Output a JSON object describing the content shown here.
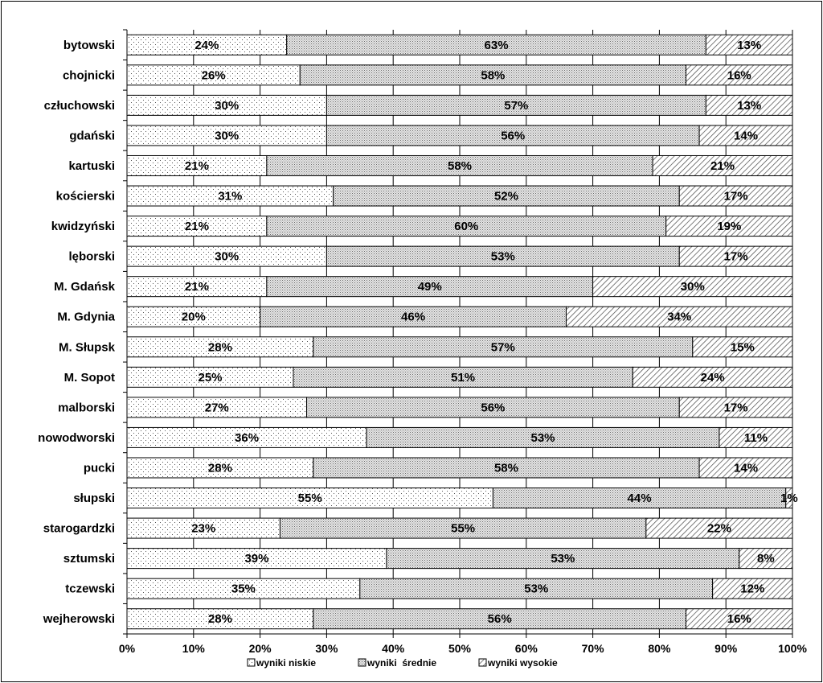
{
  "chart_data": {
    "type": "bar",
    "orientation": "horizontal",
    "stacked": true,
    "stack_mode": "percent",
    "categories": [
      "bytowski",
      "chojnicki",
      "człuchowski",
      "gdański",
      "kartuski",
      "kościerski",
      "kwidzyński",
      "lęborski",
      "M. Gdańsk",
      "M. Gdynia",
      "M. Słupsk",
      "M. Sopot",
      "malborski",
      "nowodworski",
      "pucki",
      "słupski",
      "starogardzki",
      "sztumski",
      "tczewski",
      "wejherowski"
    ],
    "series": [
      {
        "name": "wyniki niskie",
        "pattern": "sparse-dots",
        "values": [
          24,
          26,
          30,
          30,
          21,
          31,
          21,
          30,
          21,
          20,
          28,
          25,
          27,
          36,
          28,
          55,
          23,
          39,
          35,
          28
        ]
      },
      {
        "name": "wyniki  średnie",
        "pattern": "dense-dots",
        "values": [
          63,
          58,
          57,
          56,
          58,
          52,
          60,
          53,
          49,
          46,
          57,
          51,
          56,
          53,
          58,
          44,
          55,
          53,
          53,
          56
        ]
      },
      {
        "name": "wyniki wysokie",
        "pattern": "diagonal-hatch",
        "values": [
          13,
          16,
          13,
          14,
          21,
          17,
          19,
          17,
          30,
          34,
          15,
          24,
          17,
          11,
          14,
          1,
          22,
          8,
          12,
          16
        ]
      }
    ],
    "xticks": [
      "0%",
      "10%",
      "20%",
      "30%",
      "40%",
      "50%",
      "60%",
      "70%",
      "80%",
      "90%",
      "100%"
    ],
    "xlim": [
      0,
      100
    ],
    "grid": "vertical",
    "legend_position": "bottom",
    "title": "",
    "xlabel": "",
    "ylabel": ""
  }
}
